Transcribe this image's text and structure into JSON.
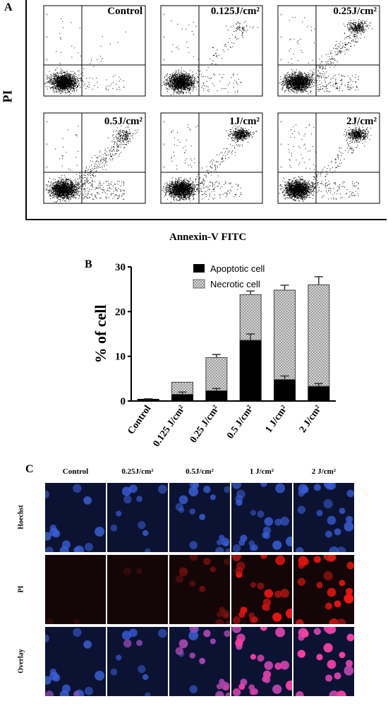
{
  "panel_a": {
    "letter": "A",
    "y_label": "PI",
    "x_label": "Annexin-V FITC",
    "plots": [
      {
        "label": "Control"
      },
      {
        "label": "0.125J/cm²"
      },
      {
        "label": "0.25J/cm²"
      },
      {
        "label": "0.5J/cm²"
      },
      {
        "label": "1J/cm²"
      },
      {
        "label": "2J/cm²"
      }
    ]
  },
  "panel_b": {
    "letter": "B"
  },
  "chart_data": {
    "type": "bar",
    "stacked": true,
    "categories": [
      "Control",
      "0.125 J/cm²",
      "0.25 J/cm²",
      "0.5 J/cm²",
      "1 J/cm²",
      "2 J/cm²"
    ],
    "series": [
      {
        "name": "Apoptotic cell",
        "color": "#000000",
        "values": [
          0.4,
          1.5,
          2.3,
          13.6,
          4.8,
          3.3
        ],
        "errors": [
          0.1,
          0.5,
          0.5,
          1.4,
          0.8,
          0.6
        ]
      },
      {
        "name": "Necrotic cell",
        "color": "#c8c8c8",
        "values": [
          0.0,
          2.7,
          7.4,
          10.2,
          20.0,
          22.7
        ],
        "errors": [
          0.0,
          0.0,
          0.7,
          0.8,
          1.1,
          1.8
        ]
      }
    ],
    "ylabel": "% of cell",
    "xlabel": "",
    "ylim": [
      0,
      30
    ],
    "yticks": [
      0,
      10,
      20,
      30
    ],
    "legend": "top-left"
  },
  "panel_c": {
    "letter": "C",
    "columns": [
      "Control",
      "0.25J/cm²",
      "0.5J/cm²",
      "1 J/cm²",
      "2 J/cm²"
    ],
    "rows": [
      "Hoechst",
      "PI",
      "Overlay"
    ]
  }
}
